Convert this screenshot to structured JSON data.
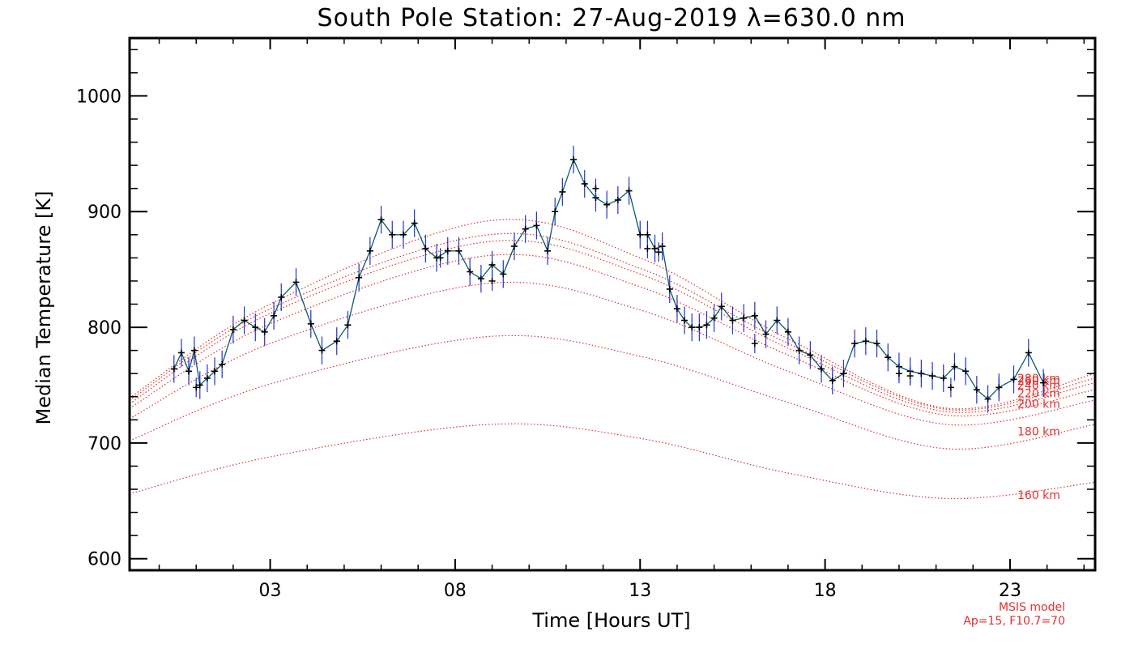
{
  "chart_data": {
    "type": "line",
    "title": "South Pole Station: 27-Aug-2019 λ=630.0 nm",
    "xlabel": "Time [Hours UT]",
    "ylabel": "Median Temperature [K]",
    "xlim": [
      -0.8,
      25.3
    ],
    "ylim": [
      590,
      1050
    ],
    "x_ticks": [
      3,
      8,
      13,
      18,
      23
    ],
    "x_tick_labels": [
      "03",
      "08",
      "13",
      "18",
      "23"
    ],
    "y_ticks": [
      600,
      700,
      800,
      900,
      1000
    ],
    "y_tick_labels": [
      "600",
      "700",
      "800",
      "900",
      "1000"
    ],
    "grid": false,
    "colors": {
      "observed_line": "#0a5a6e",
      "observed_marker": "#000000",
      "error_bar": "#2233cc",
      "model": "#e03030"
    },
    "observed": {
      "error_k": 12,
      "x": [
        0.4,
        0.6,
        0.8,
        0.95,
        1.1,
        1.3,
        1.5,
        1.7,
        2.0,
        2.3,
        2.6,
        2.85,
        3.1,
        3.3,
        3.7,
        4.1,
        4.4,
        4.8,
        5.1,
        5.4,
        5.7,
        6.0,
        6.3,
        6.6,
        6.9,
        7.2,
        7.5,
        7.8,
        8.1,
        8.4,
        8.7,
        9.0,
        9.3,
        9.6,
        9.9,
        10.2,
        10.5,
        10.7,
        10.9,
        11.2,
        11.5,
        11.8,
        12.1,
        12.4,
        12.7,
        13.0,
        13.2,
        13.4,
        13.6,
        13.8,
        14.0,
        14.2,
        14.4,
        14.6,
        14.8,
        15.0,
        15.2,
        15.5,
        15.8,
        16.1,
        16.4,
        16.7,
        17.0,
        17.3,
        17.6,
        17.9,
        18.2,
        18.5,
        18.8,
        19.1,
        19.4,
        19.7,
        20.0,
        20.3,
        20.6,
        20.9,
        21.2,
        21.5,
        21.8,
        22.1,
        22.4,
        22.7,
        23.1,
        23.5,
        23.9
      ],
      "y": [
        764,
        778,
        762,
        780,
        750,
        756,
        762,
        768,
        798,
        806,
        800,
        796,
        810,
        826,
        839,
        803,
        780,
        788,
        802,
        843,
        866,
        893,
        880,
        880,
        890,
        868,
        860,
        866,
        866,
        848,
        842,
        854,
        846,
        870,
        885,
        888,
        866,
        900,
        917,
        945,
        924,
        912,
        906,
        910,
        918,
        880,
        880,
        868,
        870,
        833,
        816,
        806,
        800,
        800,
        802,
        808,
        818,
        806,
        808,
        810,
        794,
        806,
        796,
        780,
        776,
        764,
        754,
        760,
        786,
        788,
        786,
        774,
        766,
        762,
        760,
        758,
        756,
        766,
        762,
        746,
        738,
        748,
        755,
        778,
        752
      ],
      "extra_cross": [
        [
          0.8,
          762
        ],
        [
          1.0,
          748
        ],
        [
          7.6,
          860
        ],
        [
          9.0,
          840
        ],
        [
          11.8,
          920
        ],
        [
          13.2,
          868
        ],
        [
          13.5,
          865
        ],
        [
          16.1,
          786
        ],
        [
          20.0,
          760
        ],
        [
          20.3,
          758
        ],
        [
          21.4,
          748
        ],
        [
          22.7,
          748
        ]
      ]
    },
    "model_series": [
      {
        "name": "160 km",
        "x": [
          -0.8,
          3.0,
          8.9,
          13.0,
          17.0,
          21.3,
          25.3
        ],
        "y": [
          656,
          688,
          716,
          704,
          674,
          652,
          666
        ]
      },
      {
        "name": "180 km",
        "x": [
          -0.8,
          3.0,
          8.9,
          13.0,
          17.0,
          21.3,
          25.3
        ],
        "y": [
          702,
          751,
          792,
          775,
          735,
          695,
          716
        ]
      },
      {
        "name": "200 km",
        "x": [
          -0.8,
          3.0,
          8.9,
          13.0,
          17.0,
          21.3,
          25.3
        ],
        "y": [
          721,
          786,
          838,
          815,
          762,
          716,
          737
        ]
      },
      {
        "name": "220 km",
        "x": [
          -0.8,
          3.0,
          8.9,
          13.0,
          17.0,
          21.3,
          25.3
        ],
        "y": [
          730,
          803,
          862,
          835,
          776,
          724,
          746
        ]
      },
      {
        "name": "240 km",
        "x": [
          -0.8,
          3.0,
          8.9,
          13.0,
          17.0,
          21.3,
          25.3
        ],
        "y": [
          734,
          812,
          874,
          846,
          782,
          727,
          752
        ]
      },
      {
        "name": "260 km",
        "x": [
          -0.8,
          3.0,
          8.9,
          13.0,
          17.0,
          21.3,
          25.3
        ],
        "y": [
          737,
          816,
          880,
          851,
          786,
          729,
          756
        ]
      },
      {
        "name": "280 km",
        "x": [
          -0.8,
          3.0,
          8.9,
          13.0,
          17.0,
          21.3,
          25.3
        ],
        "y": [
          739,
          820,
          892,
          860,
          790,
          730,
          760
        ]
      }
    ],
    "model_label_texts": [
      "160 km",
      "180 km",
      "200 km",
      "220 km",
      "240 km",
      "260 km",
      "280 km"
    ],
    "model_label_y": [
      655,
      710,
      734,
      743,
      750,
      754,
      756
    ],
    "note_lines": [
      "MSIS model",
      "Ap=15, F10.7=70"
    ]
  }
}
